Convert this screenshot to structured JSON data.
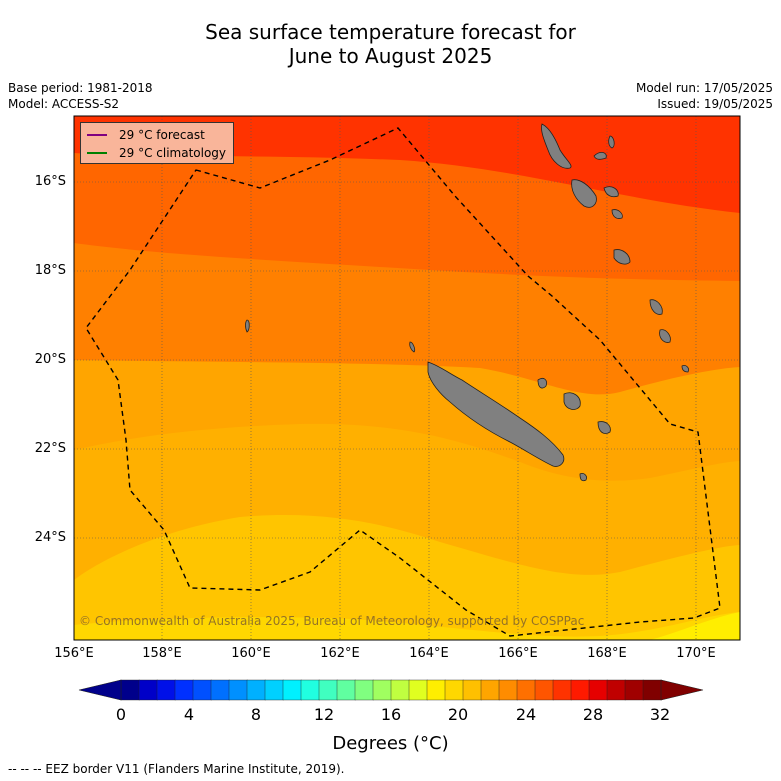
{
  "header": {
    "title_line1": "Sea surface temperature forecast for",
    "title_line2": "June to August 2025",
    "base_period": "Base period: 1981-2018",
    "model": "Model: ACCESS-S2",
    "model_run": "Model run: 17/05/2025",
    "issued": "Issued: 19/05/2025"
  },
  "map": {
    "lat_labels": [
      "16°S",
      "18°S",
      "20°S",
      "22°S",
      "24°S"
    ],
    "lon_labels": [
      "156°E",
      "158°E",
      "160°E",
      "162°E",
      "164°E",
      "166°E",
      "168°E",
      "170°E"
    ],
    "copyright": "© Commonwealth of Australia 2025, Bureau of Meteorology, supported by COSPPac",
    "land_color": "#808080",
    "band_colors": [
      "#ff3300",
      "#ff6600",
      "#ff8000",
      "#ffa500",
      "#ffc000",
      "#ffd700",
      "#ffee00"
    ]
  },
  "legend": {
    "forecast_label": "29 °C  forecast",
    "forecast_color": "#800080",
    "climatology_label": "29 °C  climatology",
    "climatology_color": "#008000"
  },
  "colorbar": {
    "ticks": [
      "0",
      "4",
      "8",
      "12",
      "16",
      "20",
      "24",
      "28",
      "32"
    ],
    "label": "Degrees (°C)",
    "colors": [
      "#00008b",
      "#0000c8",
      "#0010e8",
      "#0030ff",
      "#0050ff",
      "#0070ff",
      "#0090ff",
      "#00b0ff",
      "#00d0ff",
      "#00f0ff",
      "#20ffe0",
      "#40ffc0",
      "#60ffa0",
      "#80ff80",
      "#a0ff60",
      "#c0ff40",
      "#e0ff20",
      "#ffee00",
      "#ffd700",
      "#ffc000",
      "#ffa500",
      "#ff8c00",
      "#ff7000",
      "#ff5500",
      "#ff3300",
      "#ff1a00",
      "#e60000",
      "#c00000",
      "#a00000",
      "#800000"
    ]
  },
  "footer": {
    "eez_note": "--  --  -- EEZ border V11 (Flanders Marine Institute, 2019)."
  }
}
